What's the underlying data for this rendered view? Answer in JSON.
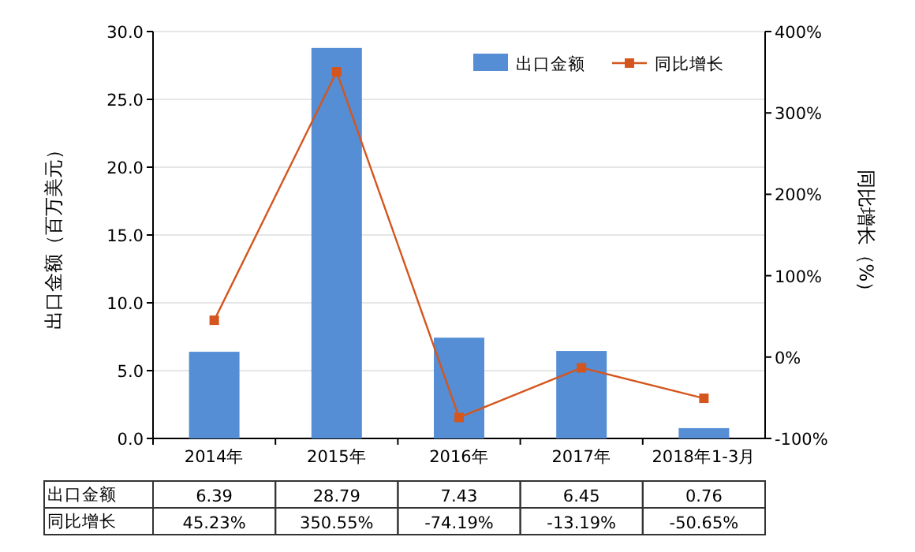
{
  "chart_data": {
    "type": "bar",
    "categories": [
      "2014年",
      "2015年",
      "2016年",
      "2017年",
      "2018年1-3月"
    ],
    "ylabel": "出口金额（百万美元）",
    "y2label": "同比增长（%）",
    "ylim": [
      0,
      30
    ],
    "yticks": [
      {
        "value": 0,
        "label": "0.0"
      },
      {
        "value": 5,
        "label": "5.0"
      },
      {
        "value": 10,
        "label": "10.0"
      },
      {
        "value": 15,
        "label": "15.0"
      },
      {
        "value": 20,
        "label": "20.0"
      },
      {
        "value": 25,
        "label": "25.0"
      },
      {
        "value": 30,
        "label": "30.0"
      }
    ],
    "y2lim": [
      -100,
      400
    ],
    "y2ticks": [
      {
        "value": -100,
        "label": "-100%"
      },
      {
        "value": 0,
        "label": "0%"
      },
      {
        "value": 100,
        "label": "100%"
      },
      {
        "value": 200,
        "label": "200%"
      },
      {
        "value": 300,
        "label": "300%"
      },
      {
        "value": 400,
        "label": "400%"
      }
    ],
    "grid": "y",
    "legend": "top right",
    "series": [
      {
        "name": "出口金额",
        "color": "#558ed5",
        "values": [
          6.39,
          28.79,
          7.43,
          6.45,
          0.76
        ],
        "value_labels": [
          "6.39",
          "28.79",
          "7.43",
          "6.45",
          "0.76"
        ]
      },
      {
        "name": "同比增长",
        "type": "line",
        "axis": "y2",
        "color": "#d4561e",
        "marker": "square",
        "values": [
          45.23,
          350.55,
          -74.19,
          -13.19,
          -50.65
        ],
        "value_labels": [
          "45.23%",
          "350.55%",
          "-74.19%",
          "-13.19%",
          "-50.65%"
        ]
      }
    ]
  }
}
